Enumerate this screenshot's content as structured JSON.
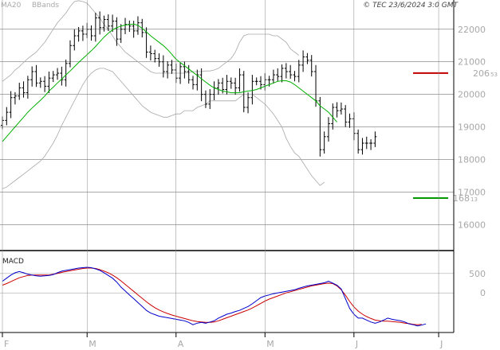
{
  "header": {
    "copyright": "© TEC 23/6/2024 3:0 GMT",
    "legend": [
      {
        "label": "MA20",
        "color": "#00b000"
      },
      {
        "label": "BBands",
        "color": "#a8a8a8"
      }
    ],
    "macd_label": "MACD"
  },
  "chart_data": {
    "type": "ohlc",
    "price_axis": {
      "ylim": [
        15200,
        22900
      ],
      "ticks": [
        16000,
        17000,
        18000,
        19000,
        20000,
        21000,
        22000
      ],
      "tick_labels": [
        "16000",
        "17000",
        "18000",
        "19000",
        "20000",
        "21000",
        "22000"
      ]
    },
    "macd_axis": {
      "ylim": [
        -1000,
        1050
      ],
      "ticks": [
        0,
        500
      ],
      "tick_labels": [
        "0",
        "500"
      ]
    },
    "months": [
      {
        "label": "F",
        "index": 0
      },
      {
        "label": "M",
        "index": 20
      },
      {
        "label": "A",
        "index": 41
      },
      {
        "label": "M",
        "index": 62
      },
      {
        "label": "J",
        "index": 83
      },
      {
        "label": "J",
        "index": 103
      }
    ],
    "total_slots": 107,
    "closes": [
      19200,
      19450,
      19900,
      19950,
      20200,
      20050,
      20450,
      20700,
      20350,
      20400,
      20250,
      20500,
      20600,
      20650,
      20450,
      20950,
      21500,
      21800,
      21950,
      21850,
      22000,
      21800,
      22350,
      22050,
      22300,
      22100,
      22250,
      21700,
      22000,
      22150,
      22100,
      21950,
      22200,
      21900,
      21300,
      21250,
      21100,
      21000,
      20700,
      20900,
      20750,
      20500,
      20850,
      20700,
      20450,
      20300,
      20600,
      20000,
      19700,
      20000,
      20200,
      20350,
      20150,
      20400,
      20350,
      20200,
      20600,
      19600,
      19900,
      20400,
      20400,
      20300,
      20450,
      20450,
      20600,
      20550,
      20800,
      20700,
      20600,
      20550,
      20900,
      21150,
      21050,
      20700,
      19800,
      18300,
      18700,
      19100,
      19600,
      19500,
      19550,
      19150,
      19250,
      18800,
      18300,
      18500,
      18500,
      18500,
      18700
    ],
    "ma20": [
      18550,
      18700,
      18850,
      19000,
      19150,
      19300,
      19450,
      19580,
      19700,
      19820,
      19950,
      20100,
      20220,
      20350,
      20470,
      20600,
      20720,
      20850,
      20980,
      21100,
      21220,
      21340,
      21470,
      21620,
      21760,
      21880,
      21980,
      22050,
      22100,
      22130,
      22150,
      22160,
      22120,
      22030,
      21920,
      21800,
      21700,
      21600,
      21500,
      21380,
      21230,
      21080,
      20980,
      20880,
      20780,
      20680,
      20580,
      20480,
      20380,
      20280,
      20200,
      20150,
      20100,
      20080,
      20050,
      20050,
      20050,
      20080,
      20100,
      20120,
      20150,
      20200,
      20250,
      20300,
      20350,
      20400,
      20420,
      20420,
      20380,
      20300,
      20200,
      20100,
      20000,
      19900,
      19800,
      19650,
      19550,
      19450,
      19300,
      19150
    ],
    "bb_upper": [
      20400,
      20500,
      20600,
      20750,
      20850,
      20980,
      21100,
      21200,
      21300,
      21450,
      21600,
      21800,
      22000,
      22200,
      22350,
      22500,
      22700,
      22850,
      22880,
      22850,
      22800,
      22650,
      22500,
      22350,
      22150,
      22000,
      21800,
      21600,
      21450,
      21300,
      21200,
      21100,
      21000,
      20900,
      20800,
      20700,
      20650,
      20650,
      20650,
      20650,
      20650,
      20650,
      20650,
      20650,
      20670,
      20700,
      20700,
      20700,
      20720,
      20720,
      20750,
      20800,
      20900,
      21000,
      21100,
      21300,
      21600,
      21800,
      21850,
      21850,
      21850,
      21850,
      21850,
      21850,
      21800,
      21800,
      21700,
      21600,
      21400,
      21300,
      21200
    ],
    "bb_lower": [
      17100,
      17150,
      17250,
      17350,
      17450,
      17550,
      17650,
      17750,
      17850,
      17950,
      18100,
      18300,
      18500,
      18750,
      19050,
      19300,
      19550,
      19800,
      20050,
      20300,
      20500,
      20650,
      20750,
      20800,
      20800,
      20750,
      20700,
      20550,
      20400,
      20250,
      20100,
      19950,
      19800,
      19650,
      19550,
      19450,
      19400,
      19350,
      19300,
      19300,
      19350,
      19400,
      19400,
      19500,
      19500,
      19500,
      19600,
      19650,
      19700,
      19800,
      19800,
      19800,
      19800,
      19800,
      19800,
      19800,
      19900,
      20000,
      20000,
      20000,
      19900,
      19800,
      19700,
      19550,
      19400,
      19200,
      19000,
      18650,
      18400,
      18200,
      18100,
      17900,
      17700,
      17500,
      17350,
      17200,
      17300
    ],
    "macd": [
      300,
      380,
      460,
      520,
      550,
      520,
      480,
      460,
      440,
      430,
      440,
      450,
      470,
      520,
      560,
      580,
      600,
      620,
      640,
      650,
      660,
      650,
      620,
      580,
      520,
      450,
      380,
      280,
      150,
      50,
      -50,
      -150,
      -250,
      -350,
      -450,
      -520,
      -560,
      -600,
      -620,
      -640,
      -660,
      -680,
      -700,
      -720,
      -760,
      -820,
      -780,
      -760,
      -780,
      -750,
      -720,
      -650,
      -600,
      -550,
      -520,
      -480,
      -450,
      -400,
      -350,
      -280,
      -200,
      -120,
      -80,
      -50,
      -20,
      0,
      20,
      40,
      60,
      80,
      120,
      150,
      180,
      200,
      220,
      240,
      260,
      300,
      250,
      200,
      100,
      -150,
      -400,
      -550,
      -650,
      -650,
      -700,
      -750,
      -780,
      -750,
      -700,
      -650,
      -680,
      -700,
      -720,
      -750,
      -800,
      -820,
      -850,
      -830,
      -800
    ],
    "macd_signal": [
      200,
      240,
      290,
      340,
      390,
      420,
      450,
      460,
      460,
      460,
      460,
      460,
      480,
      500,
      530,
      550,
      570,
      590,
      610,
      630,
      640,
      640,
      630,
      600,
      560,
      520,
      460,
      390,
      310,
      220,
      130,
      40,
      -50,
      -140,
      -230,
      -310,
      -380,
      -440,
      -490,
      -530,
      -570,
      -600,
      -630,
      -660,
      -690,
      -720,
      -740,
      -750,
      -760,
      -760,
      -750,
      -720,
      -680,
      -640,
      -600,
      -560,
      -520,
      -480,
      -440,
      -390,
      -330,
      -270,
      -210,
      -160,
      -120,
      -80,
      -40,
      0,
      30,
      60,
      90,
      120,
      150,
      180,
      200,
      220,
      240,
      250,
      240,
      180,
      80,
      -60,
      -220,
      -360,
      -470,
      -550,
      -610,
      -660,
      -700,
      -720,
      -730,
      -730,
      -740,
      -750,
      -760,
      -780,
      -790,
      -810,
      -820,
      -810
    ],
    "levels": [
      {
        "integer": "206",
        "fraction": "53",
        "value": 20653,
        "color": "#c00000"
      },
      {
        "integer": "168",
        "fraction": "13",
        "value": 16813,
        "color": "#009900"
      }
    ]
  }
}
